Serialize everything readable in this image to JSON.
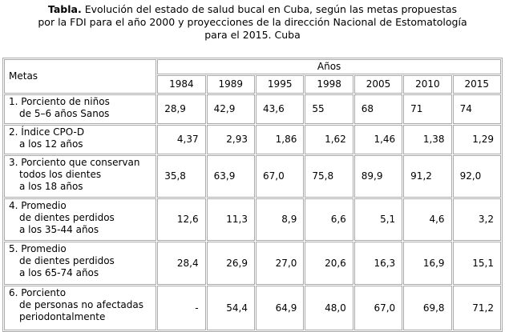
{
  "caption": {
    "label": "Tabla.",
    "lines": [
      "Evolución del estado de salud bucal en Cuba, según las metas propuestas",
      "por la FDI para el año 2000 y proyecciones de la dirección Nacional de Estomatología",
      "para el 2015. Cuba"
    ]
  },
  "table": {
    "metas_header": "Metas",
    "years_header": "Años",
    "years": [
      "1984",
      "1989",
      "1995",
      "1998",
      "2005",
      "2010",
      "2015"
    ],
    "rows": [
      {
        "label": [
          "1. Porciento de niños",
          "de 5–6 años Sanos"
        ],
        "values": [
          "28,9",
          "42,9",
          "43,6",
          "55",
          "68",
          "71",
          "74"
        ]
      },
      {
        "label": [
          "2. Índice CPO-D",
          "a los 12 años"
        ],
        "values": [
          "4,37",
          "2,93",
          "1,86",
          "1,62",
          "1,46",
          "1,38",
          "1,29"
        ]
      },
      {
        "label": [
          "3. Porciento que conservan",
          "todos los dientes",
          "a los 18 años"
        ],
        "values": [
          "35,8",
          "63,9",
          "67,0",
          "75,8",
          "89,9",
          "91,2",
          "92,0"
        ]
      },
      {
        "label": [
          "4. Promedio",
          "de dientes perdidos",
          "a los 35-44 años"
        ],
        "values": [
          "12,6",
          "11,3",
          "8,9",
          "6,6",
          "5,1",
          "4,6",
          "3,2"
        ]
      },
      {
        "label": [
          "5. Promedio",
          "de dientes perdidos",
          "a los 65-74 años"
        ],
        "values": [
          "28,4",
          "26,9",
          "27,0",
          "20,6",
          "16,3",
          "16,9",
          "15,1"
        ]
      },
      {
        "label": [
          "6. Porciento",
          "de personas no afectadas",
          "periodontalmente"
        ],
        "values": [
          "-",
          "54,4",
          "64,9",
          "48,0",
          "67,0",
          "69,8",
          "71,2"
        ]
      }
    ]
  }
}
